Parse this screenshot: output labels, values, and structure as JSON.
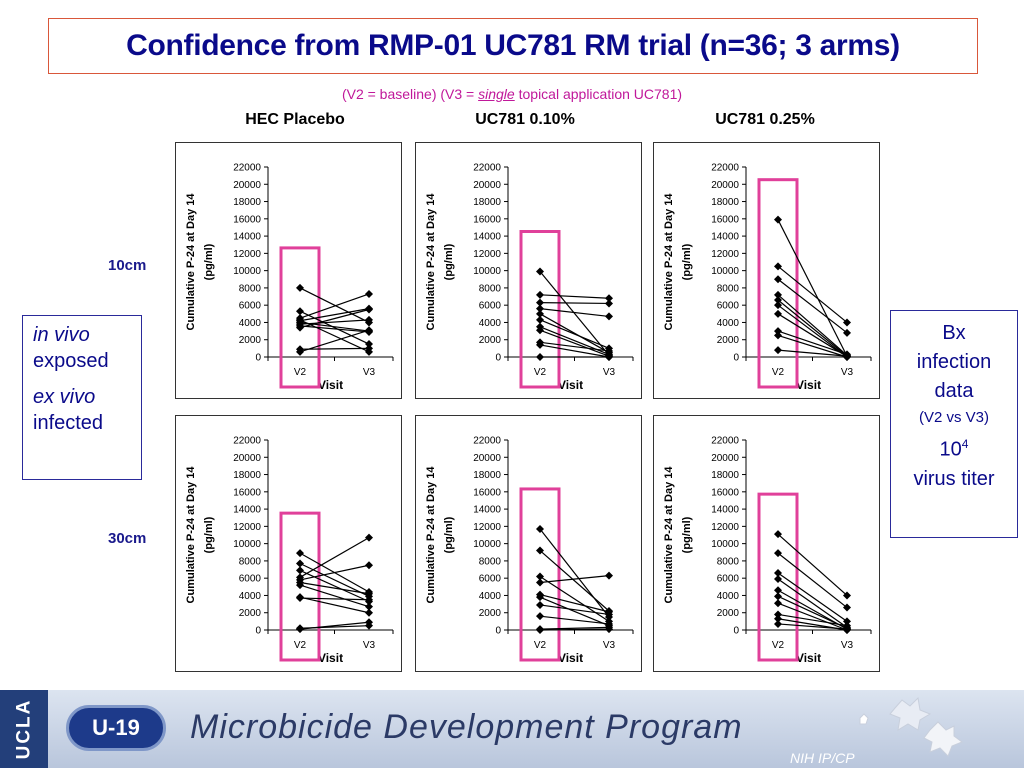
{
  "title": "Confidence from RMP-01 UC781 RM trial (n=36; 3 arms)",
  "subtitle": {
    "part1": "(V2 = baseline) (V3 = ",
    "emph": "single",
    "part2": " topical application UC781)"
  },
  "columns": [
    "HEC Placebo",
    "UC781 0.10%",
    "UC781 0.25%"
  ],
  "rows": [
    "10cm",
    "30cm"
  ],
  "left_note": {
    "line1": "in vivo",
    "line2": "exposed",
    "line3": "ex vivo",
    "line4": "infected"
  },
  "right_note": {
    "line1": "Bx",
    "line2": "infection",
    "line3": "data",
    "line4": "(V2 vs V3)",
    "line5_base": "10",
    "line5_sup": "4",
    "line6": "virus titer"
  },
  "footer": {
    "ucla": "UCLA",
    "badge": "U-19",
    "program": "Microbicide Development Program",
    "nih": "NIH IP/CP"
  },
  "colors": {
    "title": "#0a0a8a",
    "subtitle": "#c0189a",
    "highlight": "#e0409a",
    "line": "#000000"
  },
  "chart_data": [
    {
      "type": "line",
      "panel": "HEC Placebo / 10cm",
      "categories": [
        "V2",
        "V3"
      ],
      "xlabel": "Visit",
      "ylabel": "Cumulative P-24 at Day 14 (pg/ml)",
      "ylim": [
        0,
        22000
      ],
      "yticks": [
        0,
        2000,
        4000,
        6000,
        8000,
        10000,
        12000,
        14000,
        16000,
        18000,
        20000,
        22000
      ],
      "series": [
        {
          "values": [
            8000,
            4000
          ]
        },
        {
          "values": [
            5300,
            1500
          ]
        },
        {
          "values": [
            4500,
            7300
          ]
        },
        {
          "values": [
            4200,
            5600
          ]
        },
        {
          "values": [
            4000,
            3000
          ]
        },
        {
          "values": [
            3800,
            4300
          ]
        },
        {
          "values": [
            3600,
            2900
          ]
        },
        {
          "values": [
            3400,
            5500
          ]
        },
        {
          "values": [
            900,
            1000
          ]
        },
        {
          "values": [
            600,
            3100
          ]
        },
        {
          "values": [
            4300,
            600
          ]
        }
      ]
    },
    {
      "type": "line",
      "panel": "UC781 0.10% / 10cm",
      "categories": [
        "V2",
        "V3"
      ],
      "xlabel": "Visit",
      "ylabel": "Cumulative P-24 at Day 14 (pg/ml)",
      "ylim": [
        0,
        22000
      ],
      "yticks": [
        0,
        2000,
        4000,
        6000,
        8000,
        10000,
        12000,
        14000,
        16000,
        18000,
        20000,
        22000
      ],
      "series": [
        {
          "values": [
            9900,
            200
          ]
        },
        {
          "values": [
            7200,
            6800
          ]
        },
        {
          "values": [
            6300,
            6200
          ]
        },
        {
          "values": [
            5600,
            4700
          ]
        },
        {
          "values": [
            5000,
            500
          ]
        },
        {
          "values": [
            4300,
            1000
          ]
        },
        {
          "values": [
            3500,
            300
          ]
        },
        {
          "values": [
            3100,
            100
          ]
        },
        {
          "values": [
            1700,
            700
          ]
        },
        {
          "values": [
            1400,
            0
          ]
        },
        {
          "values": [
            0,
            0
          ]
        }
      ]
    },
    {
      "type": "line",
      "panel": "UC781 0.25% / 10cm",
      "categories": [
        "V2",
        "V3"
      ],
      "xlabel": "Visit",
      "ylabel": "Cumulative P-24 at Day 14 (pg/ml)",
      "ylim": [
        0,
        22000
      ],
      "yticks": [
        0,
        2000,
        4000,
        6000,
        8000,
        10000,
        12000,
        14000,
        16000,
        18000,
        20000,
        22000
      ],
      "series": [
        {
          "values": [
            15900,
            100
          ]
        },
        {
          "values": [
            10500,
            4000
          ]
        },
        {
          "values": [
            9000,
            2800
          ]
        },
        {
          "values": [
            7200,
            200
          ]
        },
        {
          "values": [
            6600,
            100
          ]
        },
        {
          "values": [
            6000,
            0
          ]
        },
        {
          "values": [
            5000,
            50
          ]
        },
        {
          "values": [
            3000,
            300
          ]
        },
        {
          "values": [
            2500,
            0
          ]
        },
        {
          "values": [
            800,
            100
          ]
        }
      ]
    },
    {
      "type": "line",
      "panel": "HEC Placebo / 30cm",
      "categories": [
        "V2",
        "V3"
      ],
      "xlabel": "Visit",
      "ylabel": "Cumulative P-24 at Day 14 (pg/ml)",
      "ylim": [
        0,
        22000
      ],
      "yticks": [
        0,
        2000,
        4000,
        6000,
        8000,
        10000,
        12000,
        14000,
        16000,
        18000,
        20000,
        22000
      ],
      "series": [
        {
          "values": [
            8900,
            4400
          ]
        },
        {
          "values": [
            7700,
            3900
          ]
        },
        {
          "values": [
            6900,
            3300
          ]
        },
        {
          "values": [
            6100,
            10700
          ]
        },
        {
          "values": [
            5800,
            7500
          ]
        },
        {
          "values": [
            5500,
            4200
          ]
        },
        {
          "values": [
            5200,
            2700
          ]
        },
        {
          "values": [
            3800,
            2000
          ]
        },
        {
          "values": [
            3700,
            3500
          ]
        },
        {
          "values": [
            200,
            500
          ]
        },
        {
          "values": [
            100,
            900
          ]
        }
      ]
    },
    {
      "type": "line",
      "panel": "UC781 0.10% / 30cm",
      "categories": [
        "V2",
        "V3"
      ],
      "xlabel": "Visit",
      "ylabel": "Cumulative P-24 at Day 14 (pg/ml)",
      "ylim": [
        0,
        22000
      ],
      "yticks": [
        0,
        2000,
        4000,
        6000,
        8000,
        10000,
        12000,
        14000,
        16000,
        18000,
        20000,
        22000
      ],
      "series": [
        {
          "values": [
            11700,
            1500
          ]
        },
        {
          "values": [
            9200,
            2200
          ]
        },
        {
          "values": [
            6200,
            1000
          ]
        },
        {
          "values": [
            5500,
            6300
          ]
        },
        {
          "values": [
            4100,
            2100
          ]
        },
        {
          "values": [
            3800,
            500
          ]
        },
        {
          "values": [
            2900,
            1800
          ]
        },
        {
          "values": [
            1600,
            700
          ]
        },
        {
          "values": [
            100,
            300
          ]
        },
        {
          "values": [
            0,
            100
          ]
        }
      ]
    },
    {
      "type": "line",
      "panel": "UC781 0.25% / 30cm",
      "categories": [
        "V2",
        "V3"
      ],
      "xlabel": "Visit",
      "ylabel": "Cumulative P-24 at Day 14 (pg/ml)",
      "ylim": [
        0,
        22000
      ],
      "yticks": [
        0,
        2000,
        4000,
        6000,
        8000,
        10000,
        12000,
        14000,
        16000,
        18000,
        20000,
        22000
      ],
      "series": [
        {
          "values": [
            11100,
            4000
          ]
        },
        {
          "values": [
            8900,
            2600
          ]
        },
        {
          "values": [
            6600,
            1000
          ]
        },
        {
          "values": [
            5900,
            300
          ]
        },
        {
          "values": [
            4600,
            100
          ]
        },
        {
          "values": [
            3900,
            200
          ]
        },
        {
          "values": [
            3100,
            0
          ]
        },
        {
          "values": [
            1800,
            500
          ]
        },
        {
          "values": [
            1300,
            0
          ]
        },
        {
          "values": [
            700,
            100
          ]
        }
      ]
    }
  ]
}
